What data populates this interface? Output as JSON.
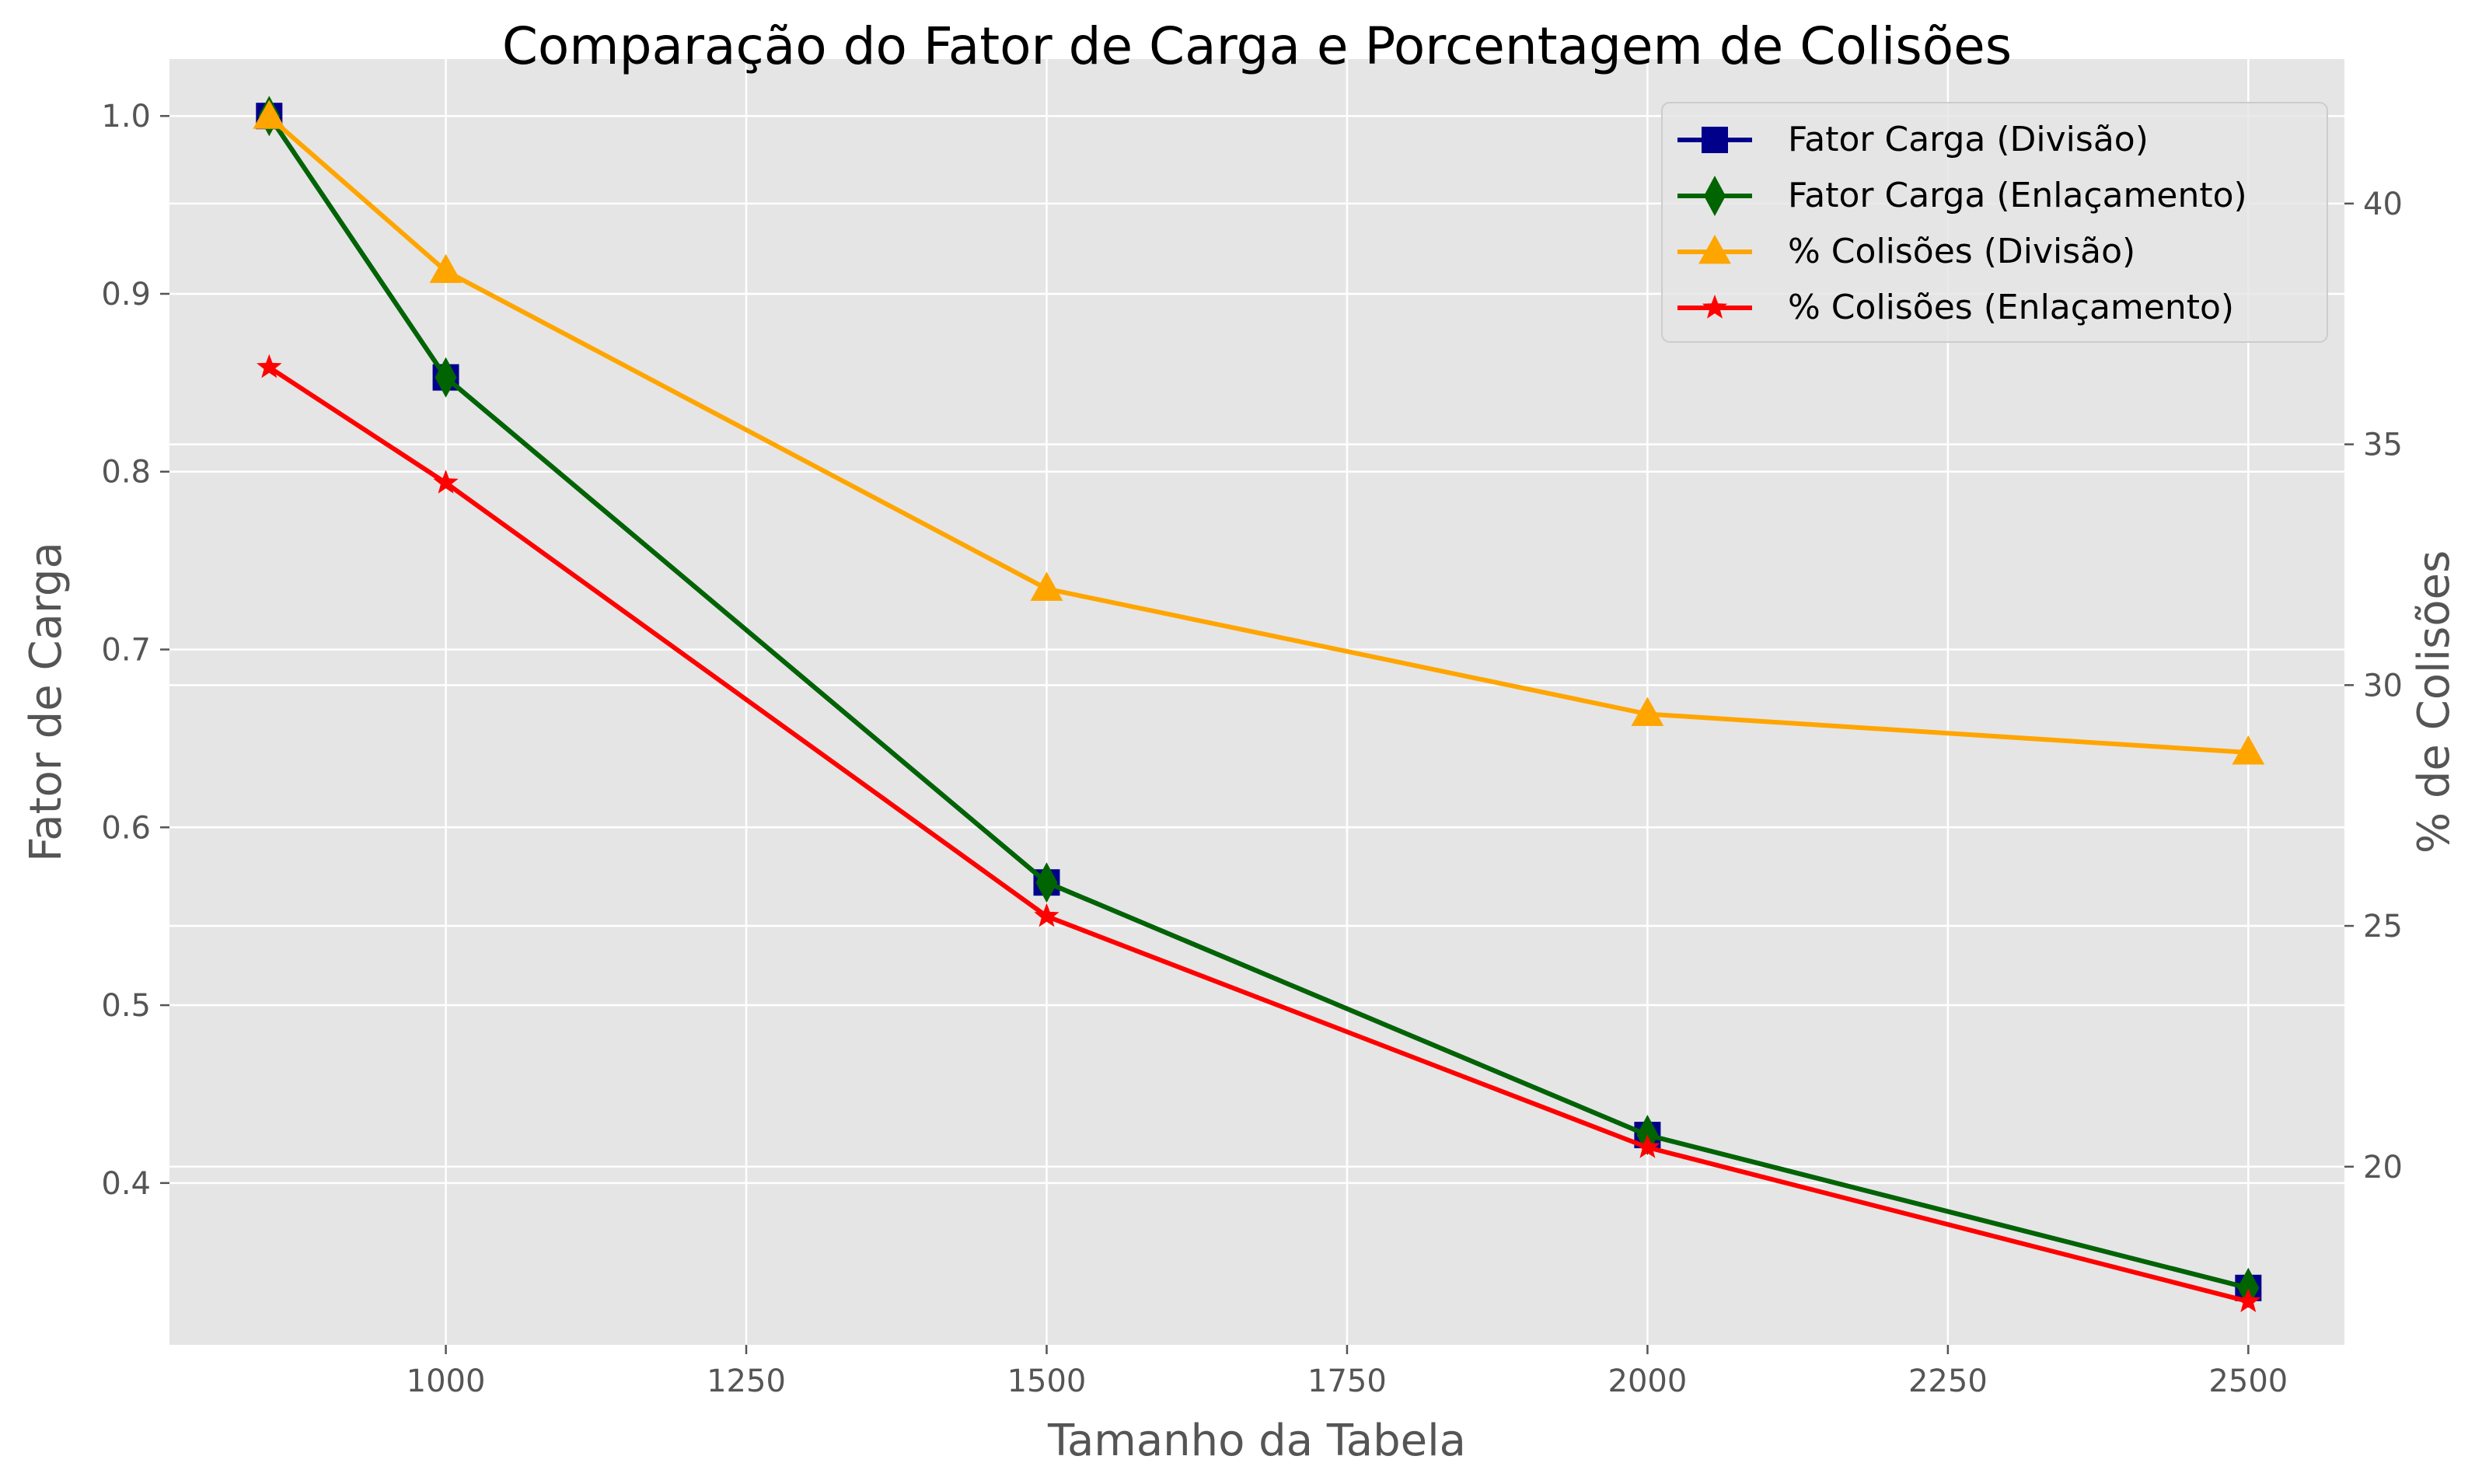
{
  "chart_data": {
    "type": "line",
    "title": "Comparação do Fator de Carga e Porcentagem de Colisões",
    "xlabel": "Tamanho da Tabela",
    "ylabel": "Fator de Carga",
    "y2label": "% de Colisões",
    "x": [
      853,
      1000,
      1500,
      2000,
      2500
    ],
    "xlim": [
      770,
      2580
    ],
    "ylim": [
      0.309,
      1.032
    ],
    "y2lim": [
      16.3,
      43.0
    ],
    "xticks": [
      "1000",
      "1250",
      "1500",
      "1750",
      "2000",
      "2250",
      "2500"
    ],
    "yticks": [
      "0.4",
      "0.5",
      "0.6",
      "0.7",
      "0.8",
      "0.9",
      "1.0"
    ],
    "y2ticks": [
      "20",
      "25",
      "30",
      "35",
      "40"
    ],
    "grid": true,
    "legend_position": "top-right",
    "series": [
      {
        "name": "Fator Carga (Divisão)",
        "axis": "left",
        "marker": "square",
        "color": "#00008b",
        "values": [
          1.0,
          0.853,
          0.569,
          0.427,
          0.341
        ]
      },
      {
        "name": "Fator Carga (Enlaçamento)",
        "axis": "left",
        "marker": "diamond",
        "color": "#006400",
        "values": [
          1.0,
          0.853,
          0.569,
          0.427,
          0.341
        ]
      },
      {
        "name": "% Colisões (Divisão)",
        "axis": "right",
        "marker": "triangle",
        "color": "#ffa500",
        "values": [
          41.8,
          38.6,
          32.0,
          29.4,
          28.6
        ]
      },
      {
        "name": "% Colisões (Enlaçamento)",
        "axis": "right",
        "marker": "star",
        "color": "#ff0000",
        "values": [
          36.6,
          34.2,
          25.2,
          20.4,
          17.2
        ]
      }
    ]
  }
}
